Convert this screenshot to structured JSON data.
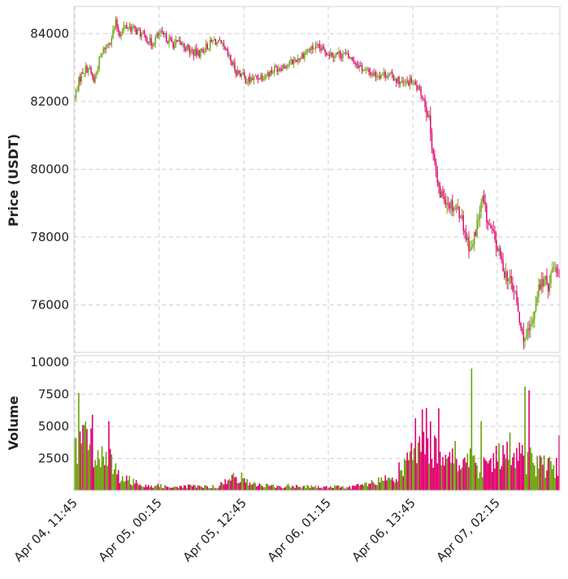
{
  "chart_data": {
    "type": "candlestick",
    "colors": {
      "up": "#6aa10a",
      "down": "#e0006e",
      "grid": "#cfcfcf",
      "frame": "#d8d8d8"
    },
    "price_panel": {
      "ylabel": "Price (USDT)",
      "ylim": [
        74600,
        84800
      ],
      "yticks": [
        84000,
        82000,
        80000,
        78000,
        76000
      ],
      "ytick_labels": [
        "84000",
        "82000",
        "80000",
        "78000",
        "76000"
      ]
    },
    "volume_panel": {
      "ylabel": "Volume",
      "ylim": [
        0,
        10500
      ],
      "yticks": [
        10000,
        7500,
        5000,
        2500
      ],
      "ytick_labels": [
        "10000",
        "7500",
        "5000",
        "2500"
      ]
    },
    "xticks": [
      "Apr 04, 11:45",
      "Apr 05, 00:15",
      "Apr 05, 12:45",
      "Apr 06, 01:15",
      "Apr 06, 13:45",
      "Apr 07, 02:15"
    ],
    "grid": true,
    "close_path": [
      [
        0,
        82100
      ],
      [
        3,
        82600
      ],
      [
        6,
        82900
      ],
      [
        10,
        83000
      ],
      [
        14,
        82600
      ],
      [
        18,
        83200
      ],
      [
        22,
        83600
      ],
      [
        26,
        83800
      ],
      [
        30,
        84300
      ],
      [
        33,
        84000
      ],
      [
        36,
        84200
      ],
      [
        40,
        84200
      ],
      [
        44,
        84100
      ],
      [
        48,
        84000
      ],
      [
        52,
        83900
      ],
      [
        56,
        83700
      ],
      [
        62,
        84000
      ],
      [
        66,
        83900
      ],
      [
        72,
        83700
      ],
      [
        78,
        83700
      ],
      [
        84,
        83500
      ],
      [
        90,
        83400
      ],
      [
        96,
        83600
      ],
      [
        102,
        83800
      ],
      [
        108,
        83600
      ],
      [
        114,
        83200
      ],
      [
        118,
        82900
      ],
      [
        122,
        82800
      ],
      [
        126,
        82600
      ],
      [
        132,
        82700
      ],
      [
        140,
        82800
      ],
      [
        148,
        83000
      ],
      [
        156,
        83100
      ],
      [
        164,
        83300
      ],
      [
        170,
        83500
      ],
      [
        176,
        83600
      ],
      [
        182,
        83500
      ],
      [
        188,
        83400
      ],
      [
        196,
        83400
      ],
      [
        204,
        83200
      ],
      [
        212,
        82900
      ],
      [
        220,
        82800
      ],
      [
        228,
        82800
      ],
      [
        234,
        82700
      ],
      [
        240,
        82500
      ],
      [
        246,
        82600
      ],
      [
        250,
        82400
      ],
      [
        254,
        82200
      ],
      [
        258,
        81700
      ],
      [
        262,
        80500
      ],
      [
        266,
        79300
      ],
      [
        270,
        79200
      ],
      [
        274,
        79000
      ],
      [
        278,
        78900
      ],
      [
        282,
        78700
      ],
      [
        286,
        78000
      ],
      [
        290,
        77600
      ],
      [
        294,
        78400
      ],
      [
        298,
        79100
      ],
      [
        302,
        78400
      ],
      [
        306,
        78000
      ],
      [
        310,
        77500
      ],
      [
        314,
        77000
      ],
      [
        318,
        76700
      ],
      [
        322,
        76300
      ],
      [
        326,
        75200
      ],
      [
        330,
        75000
      ],
      [
        334,
        75400
      ],
      [
        338,
        76400
      ],
      [
        342,
        76700
      ],
      [
        346,
        76600
      ],
      [
        350,
        77200
      ],
      [
        354,
        77000
      ]
    ],
    "volume_levels": [
      [
        0,
        2800
      ],
      [
        8,
        4500
      ],
      [
        16,
        3000
      ],
      [
        24,
        2600
      ],
      [
        32,
        1200
      ],
      [
        40,
        800
      ],
      [
        48,
        600
      ],
      [
        56,
        400
      ],
      [
        64,
        350
      ],
      [
        72,
        300
      ],
      [
        80,
        300
      ],
      [
        88,
        350
      ],
      [
        96,
        300
      ],
      [
        104,
        350
      ],
      [
        112,
        700
      ],
      [
        118,
        1300
      ],
      [
        126,
        650
      ],
      [
        134,
        500
      ],
      [
        142,
        350
      ],
      [
        150,
        300
      ],
      [
        158,
        400
      ],
      [
        166,
        350
      ],
      [
        174,
        300
      ],
      [
        182,
        250
      ],
      [
        190,
        300
      ],
      [
        198,
        250
      ],
      [
        206,
        350
      ],
      [
        214,
        500
      ],
      [
        222,
        700
      ],
      [
        230,
        1000
      ],
      [
        238,
        1600
      ],
      [
        244,
        2400
      ],
      [
        250,
        4200
      ],
      [
        256,
        4800
      ],
      [
        262,
        3600
      ],
      [
        268,
        3000
      ],
      [
        276,
        2800
      ],
      [
        284,
        2600
      ],
      [
        292,
        2200
      ],
      [
        300,
        1900
      ],
      [
        306,
        2200
      ],
      [
        312,
        2800
      ],
      [
        318,
        3200
      ],
      [
        324,
        2900
      ],
      [
        330,
        2600
      ],
      [
        338,
        2200
      ],
      [
        346,
        2000
      ],
      [
        354,
        1700
      ]
    ],
    "volume_spikes": [
      [
        3,
        7600
      ],
      [
        13,
        5900
      ],
      [
        25,
        5400
      ],
      [
        266,
        6400
      ],
      [
        290,
        9500
      ],
      [
        297,
        5400
      ],
      [
        329,
        8100
      ],
      [
        332,
        7800
      ],
      [
        354,
        4300
      ]
    ],
    "n_candles": 355,
    "seed": 7
  }
}
